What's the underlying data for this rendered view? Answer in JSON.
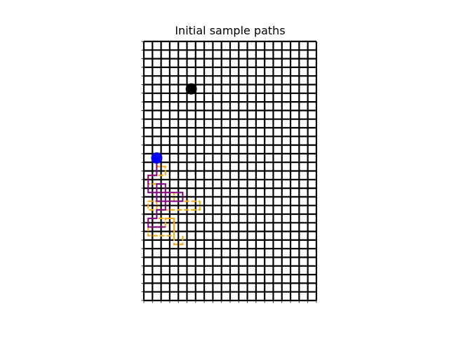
{
  "chart_data": {
    "type": "scatter",
    "title": "Initial sample paths",
    "xlabel": "",
    "ylabel": "",
    "xlim": [
      0,
      20
    ],
    "ylim": [
      0,
      30
    ],
    "y_inverted": true,
    "grid": true,
    "grid_cells": {
      "columns": 20,
      "rows": 30
    },
    "show_tick_labels": false,
    "legend": "none",
    "markers": [
      {
        "name": "start",
        "x": 1.5,
        "y": 13.5,
        "color": "#0000ff"
      },
      {
        "name": "goal",
        "x": 5.5,
        "y": 5.5,
        "color": "#000000"
      }
    ],
    "paths": [
      {
        "color": "#ffa500",
        "style": "dashed",
        "points": [
          [
            1.5,
            13.5
          ],
          [
            1.5,
            14.5
          ],
          [
            2.5,
            14.5
          ],
          [
            2.5,
            15.5
          ],
          [
            0.5,
            15.5
          ],
          [
            0.5,
            16.5
          ],
          [
            2.5,
            16.5
          ],
          [
            2.5,
            17.5
          ],
          [
            3.5,
            17.5
          ],
          [
            3.5,
            18.5
          ],
          [
            6.5,
            18.5
          ],
          [
            6.5,
            19.5
          ],
          [
            0.5,
            19.5
          ],
          [
            0.5,
            18.5
          ],
          [
            1.5,
            18.5
          ],
          [
            1.5,
            20.5
          ],
          [
            3.5,
            20.5
          ],
          [
            3.5,
            22.5
          ],
          [
            0.5,
            22.5
          ],
          [
            0.5,
            21.5
          ],
          [
            2.5,
            21.5
          ],
          [
            2.5,
            20.5
          ],
          [
            3.5,
            20.5
          ],
          [
            3.5,
            23.5
          ],
          [
            4.5,
            23.5
          ],
          [
            4.5,
            22.5
          ]
        ]
      },
      {
        "color": "#800080",
        "style": "solid",
        "points": [
          [
            1.5,
            13.5
          ],
          [
            1.5,
            15.5
          ],
          [
            0.5,
            15.5
          ],
          [
            0.5,
            17.5
          ],
          [
            2.5,
            17.5
          ],
          [
            2.5,
            16.5
          ],
          [
            1.5,
            16.5
          ],
          [
            1.5,
            18.5
          ],
          [
            4.5,
            18.5
          ],
          [
            4.5,
            17.5
          ],
          [
            2.5,
            17.5
          ],
          [
            2.5,
            19.5
          ],
          [
            1.5,
            19.5
          ],
          [
            1.5,
            20.5
          ],
          [
            0.5,
            20.5
          ],
          [
            0.5,
            21.5
          ],
          [
            2.5,
            21.5
          ]
        ]
      }
    ]
  }
}
